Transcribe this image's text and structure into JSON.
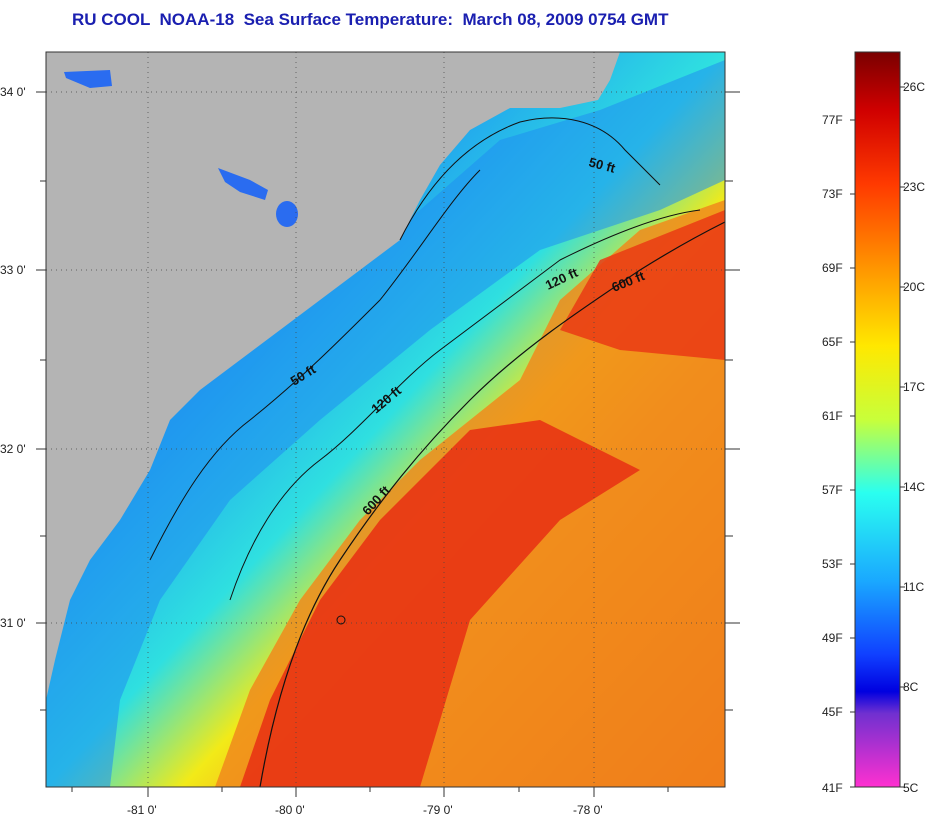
{
  "title": "RU COOL  NOAA-18  Sea Surface Temperature:  March 08, 2009 0754 GMT",
  "map": {
    "lat_labels": [
      "34 0'",
      "33 0'",
      "32 0'",
      "31 0'"
    ],
    "lon_labels": [
      "-81 0'",
      "-80 0'",
      "-79 0'",
      "-78 0'"
    ],
    "isobaths": [
      "50 ft",
      "50 ft",
      "120 ft",
      "120 ft",
      "600 ft",
      "600 ft"
    ],
    "colors": {
      "land": "#b4b4b4",
      "warm": "#ee2a10",
      "cool": "#1e66f0"
    }
  },
  "colorbar": {
    "fahrenheit": [
      "77F",
      "73F",
      "69F",
      "65F",
      "61F",
      "57F",
      "53F",
      "49F",
      "45F",
      "41F"
    ],
    "celsius": [
      "26C",
      "23C",
      "20C",
      "17C",
      "14C",
      "11C",
      "8C",
      "5C"
    ]
  }
}
